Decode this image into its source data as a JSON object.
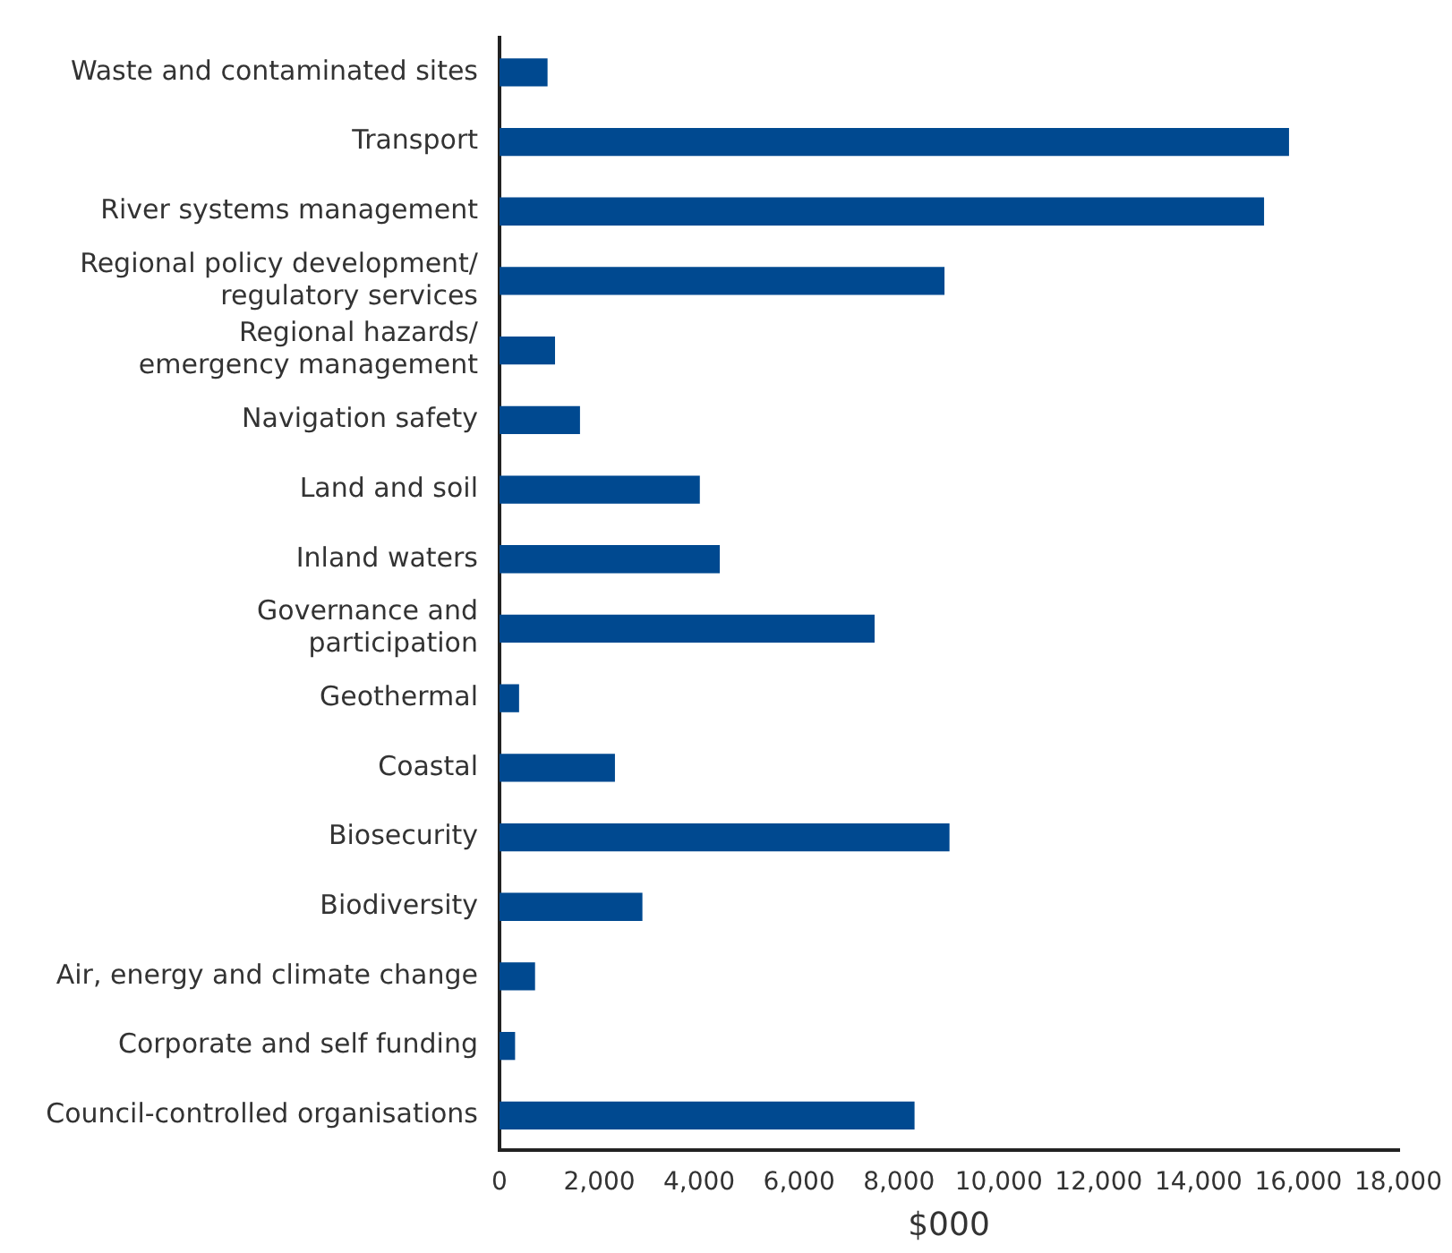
{
  "chart_data": {
    "type": "bar",
    "orientation": "horizontal",
    "xlabel": "$000",
    "categories": [
      "Waste and contaminated sites",
      "Transport",
      "River systems management",
      "Regional policy development/\nregulatory services",
      "Regional hazards/\nemergency management",
      "Navigation safety",
      "Land and soil",
      "Inland waters",
      "Governance and\nparticipation",
      "Geothermal",
      "Coastal",
      "Biosecurity",
      "Biodiversity",
      "Air, energy and climate change",
      "Corporate and self funding",
      "Council-controlled organisations"
    ],
    "values": [
      950,
      15800,
      15300,
      8900,
      1100,
      1600,
      4000,
      4400,
      7500,
      380,
      2300,
      9000,
      2850,
      700,
      300,
      8300
    ],
    "color": "#004990",
    "xlim": [
      0,
      18000
    ],
    "xticks": [
      {
        "value": 0,
        "label": "0"
      },
      {
        "value": 2000,
        "label": "2,000"
      },
      {
        "value": 4000,
        "label": "4,000"
      },
      {
        "value": 6000,
        "label": "6,000"
      },
      {
        "value": 8000,
        "label": "8,000"
      },
      {
        "value": 10000,
        "label": "10,000"
      },
      {
        "value": 12000,
        "label": "12,000"
      },
      {
        "value": 14000,
        "label": "14,000"
      },
      {
        "value": 16000,
        "label": "16,000"
      },
      {
        "value": 18000,
        "label": "18,000"
      }
    ],
    "grid": false,
    "legend": false
  }
}
